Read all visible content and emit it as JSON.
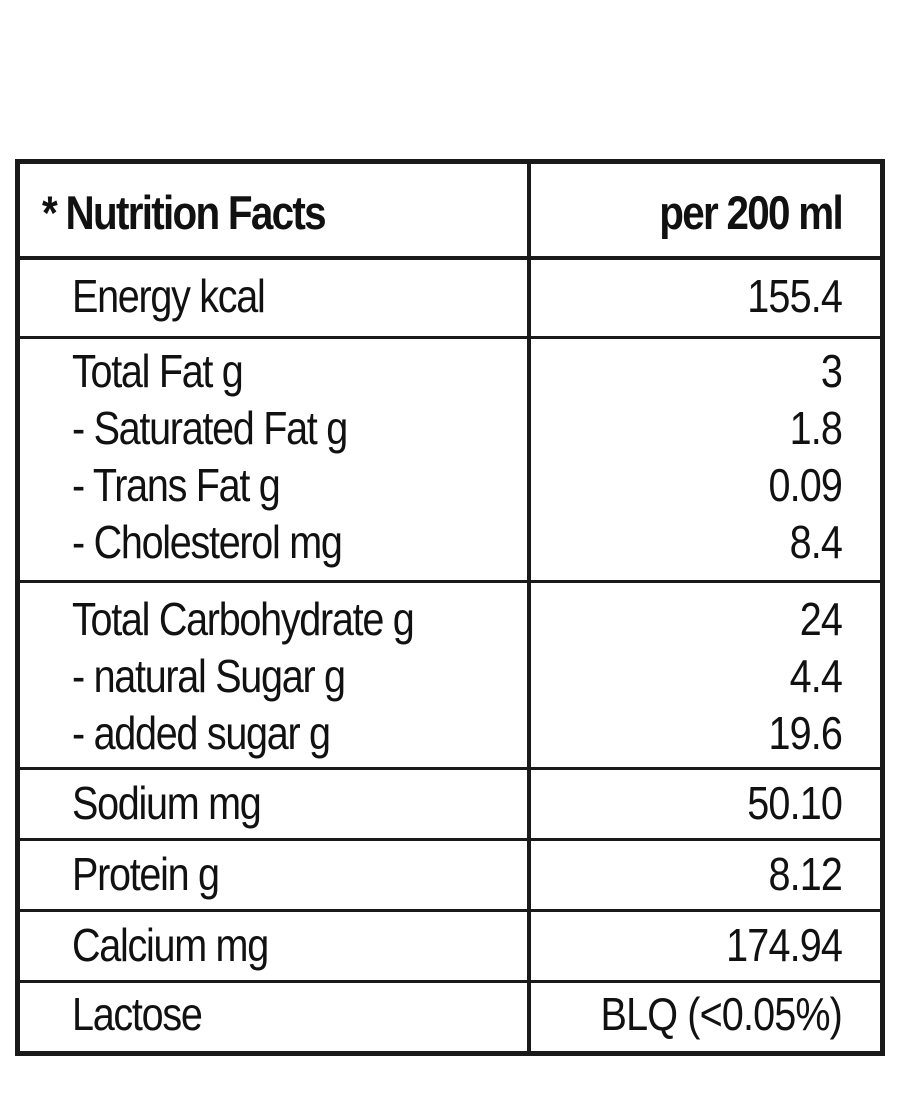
{
  "table": {
    "header": {
      "title": "* Nutrition Facts",
      "per": "per 200 ml"
    },
    "groups": [
      {
        "rows": [
          {
            "label": "Energy kcal",
            "value": "155.4"
          }
        ]
      },
      {
        "rows": [
          {
            "label": "Total Fat g",
            "value": "3"
          },
          {
            "label": "- Saturated Fat g",
            "value": "1.8"
          },
          {
            "label": "- Trans Fat g",
            "value": "0.09"
          },
          {
            "label": "- Cholesterol mg",
            "value": "8.4"
          }
        ]
      },
      {
        "rows": [
          {
            "label": "Total Carbohydrate g",
            "value": "24"
          },
          {
            "label": "- natural Sugar g",
            "value": "4.4"
          },
          {
            "label": "- added sugar g",
            "value": "19.6"
          }
        ]
      },
      {
        "rows": [
          {
            "label": "Sodium mg",
            "value": "50.10"
          }
        ]
      },
      {
        "rows": [
          {
            "label": "Protein g",
            "value": "8.12"
          }
        ]
      },
      {
        "rows": [
          {
            "label": "Calcium mg",
            "value": "174.94"
          }
        ]
      },
      {
        "rows": [
          {
            "label": "Lactose",
            "value": "BLQ (<0.05%)"
          }
        ]
      }
    ]
  }
}
